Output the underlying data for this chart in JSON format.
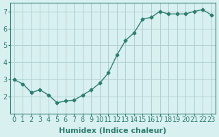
{
  "x": [
    0,
    1,
    2,
    3,
    4,
    5,
    6,
    7,
    8,
    9,
    10,
    11,
    12,
    13,
    14,
    15,
    16,
    17,
    18,
    19,
    20,
    21,
    22,
    23
  ],
  "y": [
    3.0,
    2.75,
    2.25,
    2.4,
    2.1,
    1.65,
    1.75,
    1.8,
    2.1,
    2.4,
    2.8,
    3.4,
    4.45,
    5.3,
    5.75,
    6.55,
    6.65,
    7.0,
    6.85,
    6.85,
    6.85,
    7.0,
    7.1,
    6.8
  ],
  "line_color": "#2e7d6e",
  "marker_color": "#2e7d6e",
  "bg_color": "#d8f0f0",
  "grid_color": "#b0d0d0",
  "xlabel": "Humidex (Indice chaleur)",
  "xlim": [
    -0.5,
    23.5
  ],
  "ylim": [
    1.0,
    7.5
  ],
  "yticks": [
    2,
    3,
    4,
    5,
    6,
    7
  ],
  "xtick_labels": [
    "0",
    "1",
    "2",
    "3",
    "4",
    "5",
    "6",
    "7",
    "8",
    "9",
    "10",
    "11",
    "12",
    "13",
    "14",
    "15",
    "16",
    "17",
    "18",
    "19",
    "20",
    "21",
    "22",
    "23"
  ],
  "label_fontsize": 8,
  "tick_fontsize": 7
}
